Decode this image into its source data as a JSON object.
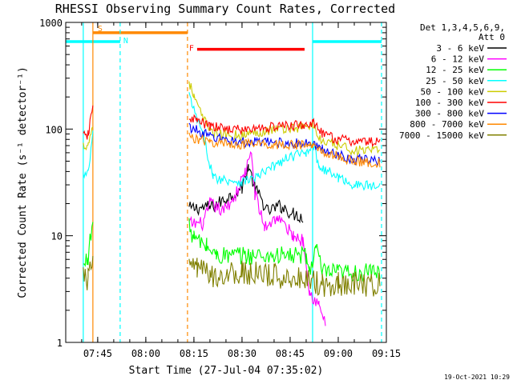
{
  "chart_data": {
    "type": "line",
    "title": "RHESSI Observing Summary Count Rates, Corrected",
    "xlabel": "Start Time (27-Jul-04 07:35:02)",
    "ylabel": "Corrected Count Rate (s⁻¹ detector⁻¹)",
    "yscale": "log",
    "ylim": [
      1,
      1000
    ],
    "xlim": [
      "07:35:02",
      "09:15:00"
    ],
    "x_ticks": [
      "07:45",
      "08:00",
      "08:15",
      "08:30",
      "08:45",
      "09:00",
      "09:15"
    ],
    "y_ticks": [
      "1",
      "10",
      "100",
      "1000"
    ],
    "legend_header": [
      "Det 1,3,4,5,6,9,",
      "Att 0"
    ],
    "stamp": "19-Oct-2021 10:29",
    "flag_labels": {
      "saa": "S",
      "night": "N",
      "flare": "F"
    },
    "gaps": [
      {
        "start": "07:35:02",
        "end": "07:40:30"
      },
      {
        "start": "07:43:30",
        "end": "08:13:00"
      }
    ],
    "series": [
      {
        "name": "3 - 6 keV",
        "color": "#000000",
        "points": [
          [
            "08:13:30",
            18
          ],
          [
            "08:20",
            18.5
          ],
          [
            "08:25",
            22
          ],
          [
            "08:30",
            28
          ],
          [
            "08:32",
            45
          ],
          [
            "08:34",
            28
          ],
          [
            "08:38",
            17
          ],
          [
            "08:42",
            19
          ],
          [
            "08:46",
            16
          ],
          [
            "08:49",
            15
          ]
        ]
      },
      {
        "name": "6 - 12 keV",
        "color": "#ff00ff",
        "points": [
          [
            "08:13:30",
            13
          ],
          [
            "08:18",
            13
          ],
          [
            "08:20",
            20
          ],
          [
            "08:24",
            17
          ],
          [
            "08:28",
            24
          ],
          [
            "08:31",
            40
          ],
          [
            "08:33",
            58
          ],
          [
            "08:34",
            25
          ],
          [
            "08:37",
            12
          ],
          [
            "08:41",
            15
          ],
          [
            "08:46",
            10
          ],
          [
            "08:49",
            9
          ],
          [
            "08:50",
            6
          ],
          [
            "08:51",
            3
          ],
          [
            "08:54",
            2.2
          ],
          [
            "08:56",
            1.5
          ]
        ]
      },
      {
        "name": "12 - 25 keV",
        "color": "#00ff00",
        "points": [
          [
            "07:40:30",
            5
          ],
          [
            "07:42",
            6.5
          ],
          [
            "07:43:30",
            14
          ],
          [
            "08:13:30",
            12
          ],
          [
            "08:15",
            9.5
          ],
          [
            "08:19",
            8
          ],
          [
            "08:22",
            6.5
          ],
          [
            "08:50",
            6.5
          ],
          [
            "08:51",
            4.5
          ],
          [
            "08:53",
            8
          ],
          [
            "08:55",
            4.5
          ],
          [
            "09:00",
            4.5
          ],
          [
            "09:13",
            4.5
          ]
        ]
      },
      {
        "name": "25 - 50 keV",
        "color": "#00ffff",
        "points": [
          [
            "07:40:30",
            36
          ],
          [
            "07:42",
            38
          ],
          [
            "07:43:30",
            90
          ],
          [
            "08:13:30",
            210
          ],
          [
            "08:15",
            150
          ],
          [
            "08:18",
            85
          ],
          [
            "08:21",
            35
          ],
          [
            "08:30",
            32
          ],
          [
            "08:35",
            36
          ],
          [
            "08:40",
            45
          ],
          [
            "08:45",
            55
          ],
          [
            "08:50",
            60
          ],
          [
            "08:52",
            75
          ],
          [
            "08:54",
            45
          ],
          [
            "09:00",
            35
          ],
          [
            "09:05",
            30
          ],
          [
            "09:13",
            29
          ]
        ]
      },
      {
        "name": "50 - 100 keV",
        "color": "#cccc00",
        "points": [
          [
            "07:40:30",
            70
          ],
          [
            "07:42",
            72
          ],
          [
            "07:43:30",
            110
          ],
          [
            "08:13:30",
            280
          ],
          [
            "08:15",
            200
          ],
          [
            "08:18",
            120
          ],
          [
            "08:22",
            90
          ],
          [
            "08:30",
            88
          ],
          [
            "08:40",
            100
          ],
          [
            "08:50",
            105
          ],
          [
            "08:52",
            110
          ],
          [
            "08:55",
            75
          ],
          [
            "09:00",
            70
          ],
          [
            "09:05",
            63
          ],
          [
            "09:13",
            62
          ]
        ]
      },
      {
        "name": "100 - 300 keV",
        "color": "#ff0000",
        "points": [
          [
            "07:40:30",
            85
          ],
          [
            "07:42",
            88
          ],
          [
            "07:43:30",
            160
          ],
          [
            "08:13:30",
            130
          ],
          [
            "08:16",
            120
          ],
          [
            "08:20",
            105
          ],
          [
            "08:30",
            98
          ],
          [
            "08:40",
            105
          ],
          [
            "08:50",
            110
          ],
          [
            "08:52",
            115
          ],
          [
            "08:55",
            90
          ],
          [
            "09:00",
            80
          ],
          [
            "09:05",
            76
          ],
          [
            "09:13",
            76
          ]
        ]
      },
      {
        "name": "300 - 800 keV",
        "color": "#0000ff",
        "points": [
          [
            "08:13:30",
            105
          ],
          [
            "08:20",
            85
          ],
          [
            "08:30",
            75
          ],
          [
            "08:40",
            75
          ],
          [
            "08:52",
            72
          ],
          [
            "08:55",
            65
          ],
          [
            "09:00",
            58
          ],
          [
            "09:05",
            52
          ],
          [
            "09:13",
            50
          ]
        ]
      },
      {
        "name": "800 - 7000 keV",
        "color": "#ff8800",
        "points": [
          [
            "08:13:30",
            85
          ],
          [
            "08:20",
            75
          ],
          [
            "08:30",
            72
          ],
          [
            "08:40",
            72
          ],
          [
            "08:52",
            70
          ],
          [
            "08:55",
            62
          ],
          [
            "09:00",
            55
          ],
          [
            "09:05",
            50
          ],
          [
            "09:13",
            48
          ]
        ]
      },
      {
        "name": "7000 - 15000 keV",
        "color": "#808000",
        "points": [
          [
            "07:40:30",
            4
          ],
          [
            "07:42",
            4
          ],
          [
            "07:43:30",
            5
          ],
          [
            "08:13:30",
            6
          ],
          [
            "08:16",
            5
          ],
          [
            "08:20",
            4.2
          ],
          [
            "08:30",
            4.5
          ],
          [
            "08:40",
            4.2
          ],
          [
            "08:50",
            4
          ],
          [
            "08:55",
            3.5
          ],
          [
            "09:00",
            3.6
          ],
          [
            "09:13",
            3.5
          ]
        ]
      }
    ],
    "flag_bars": [
      {
        "label": "S",
        "kind": "bar",
        "color": "#ff8800",
        "start": "07:43:30",
        "end": "08:13:00",
        "level": 800
      },
      {
        "label": "N",
        "kind": "bar",
        "color": "#00ffff",
        "start": "07:35:02",
        "end": "07:52:00",
        "level": 660
      },
      {
        "label": "N",
        "kind": "bar",
        "color": "#00ffff",
        "start": "08:52:00",
        "end": "09:13:30",
        "level": 660
      },
      {
        "label": "F",
        "kind": "bar",
        "color": "#ff0000",
        "start": "08:16:00",
        "end": "08:49:30",
        "level": 560
      }
    ],
    "markers": [
      {
        "time": "07:40:30",
        "color": "#00ffff",
        "style": "solid"
      },
      {
        "time": "07:43:30",
        "color": "#ff8800",
        "style": "solid"
      },
      {
        "time": "07:52:00",
        "color": "#00ffff",
        "style": "dashed"
      },
      {
        "time": "08:13:00",
        "color": "#ff8800",
        "style": "dashed"
      },
      {
        "time": "08:52:00",
        "color": "#00ffff",
        "style": "solid"
      },
      {
        "time": "09:13:30",
        "color": "#00ffff",
        "style": "dashed"
      }
    ]
  }
}
